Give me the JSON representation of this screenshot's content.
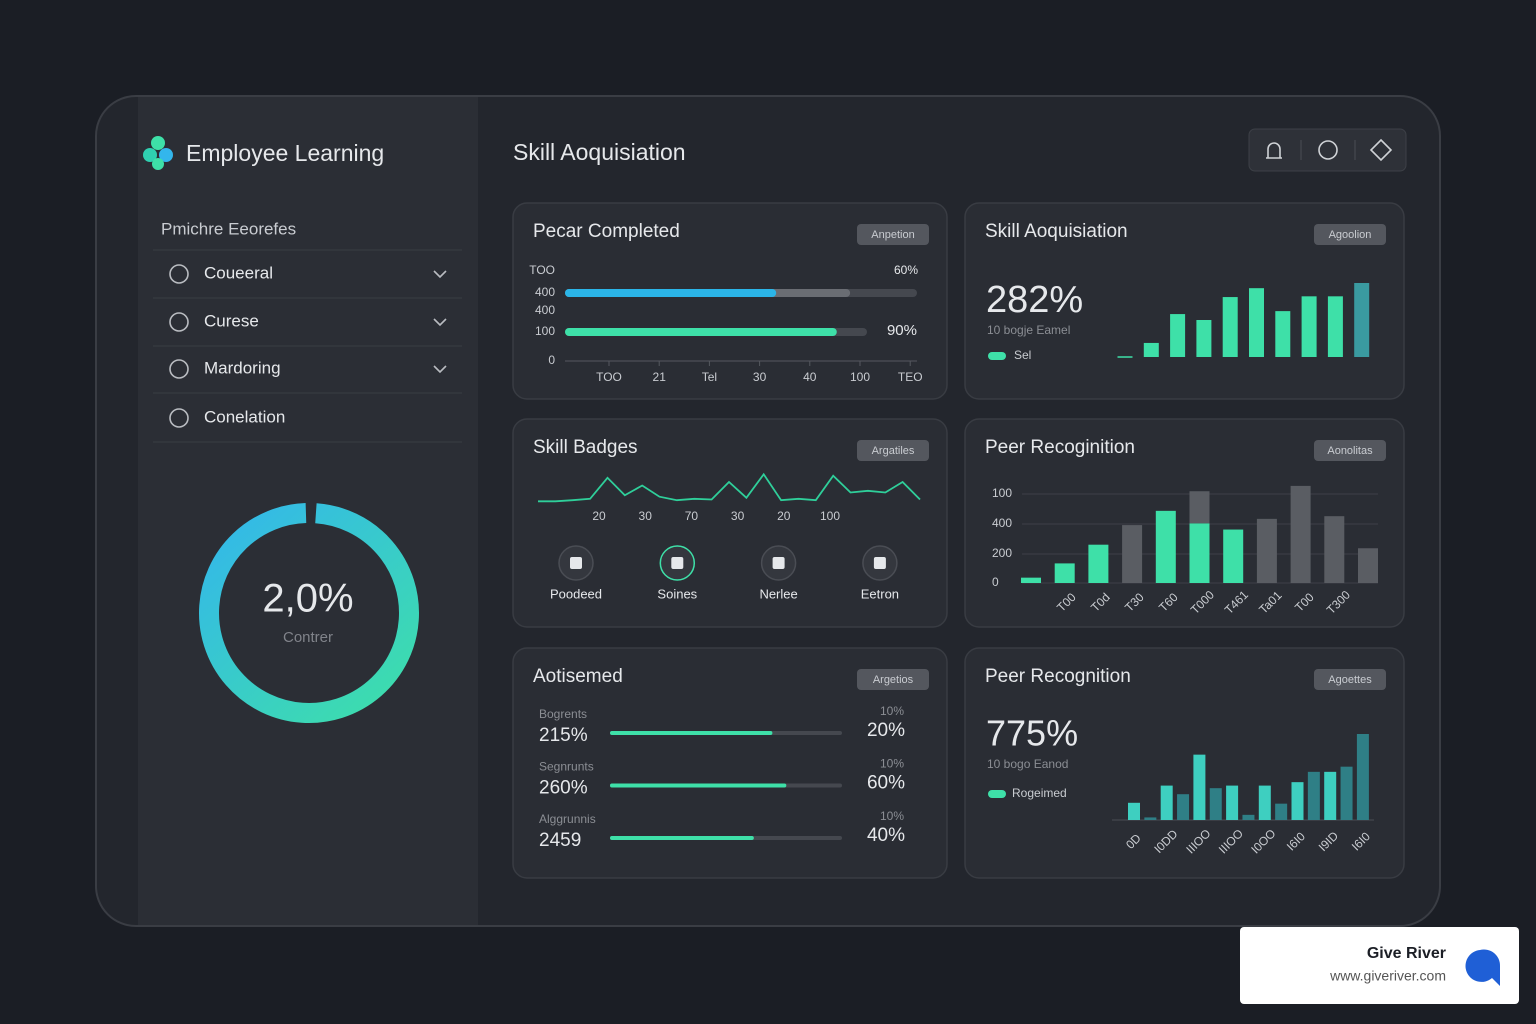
{
  "sidebar": {
    "brand": "Employee Learning",
    "section_title": "Pmichre Eeorefes",
    "menu": [
      {
        "label": "Coueeral",
        "expandable": true
      },
      {
        "label": "Curese",
        "expandable": true
      },
      {
        "label": "Mardoring",
        "expandable": true
      },
      {
        "label": "Conelation",
        "expandable": false
      }
    ],
    "progress_ring": {
      "value_label": "2,0%",
      "caption": "Contrer"
    }
  },
  "header": {
    "title": "Skill Aoquisiation"
  },
  "card_completed": {
    "title": "Pecar Completed",
    "badge": "Anpetion",
    "y_labels": [
      "TOO",
      "400",
      "400",
      "100",
      "0"
    ],
    "x_labels": [
      "TOO",
      "21",
      "Tel",
      "30",
      "40",
      "100",
      "TEO"
    ],
    "bars": [
      {
        "value": 60,
        "buffer": 81,
        "value_label": "60%",
        "color": "#2bb5e8"
      },
      {
        "value": 90,
        "value_label": "90%",
        "color": "#3ee0a8"
      }
    ]
  },
  "card_skill": {
    "title": "Skill Aoquisiation",
    "badge": "Agoolion",
    "kpi": "282%",
    "subtitle": "10 bogje Eamel",
    "legend": "Sel",
    "ylim": [
      0,
      100
    ],
    "values": [
      1,
      19,
      58,
      50,
      81,
      93,
      62,
      82,
      82,
      100
    ],
    "colors": [
      "#3ee0a8",
      "#3ee0a8",
      "#3ee0a8",
      "#3ee0a8",
      "#3ee0a8",
      "#3ee0a8",
      "#3ee0a8",
      "#3ee0a8",
      "#3ee0a8",
      "#3a9aa0"
    ]
  },
  "card_badges": {
    "title": "Skill Badges",
    "badge": "Argatiles",
    "line": {
      "ylim": [
        0,
        100
      ],
      "color": "#2fcf9a",
      "values": [
        5,
        5,
        8,
        12,
        72,
        22,
        50,
        18,
        8,
        12,
        10,
        60,
        15,
        82,
        8,
        12,
        8,
        78,
        30,
        35,
        30,
        60,
        10
      ]
    },
    "x_labels": [
      "20",
      "30",
      "70",
      "30",
      "20",
      "100"
    ],
    "items": [
      {
        "label": "Poodeed"
      },
      {
        "label": "Soines"
      },
      {
        "label": "Nerlee"
      },
      {
        "label": "Eetron"
      }
    ]
  },
  "card_peer": {
    "title": "Peer Recoginition",
    "badge": "Aonolitas",
    "y_labels": [
      "100",
      "400",
      "200",
      "0"
    ],
    "ylim": [
      0,
      110
    ],
    "series": [
      {
        "color": "#3ee0a8",
        "values": [
          6,
          22,
          43,
          null,
          81,
          67,
          60,
          null,
          null,
          null,
          null
        ]
      },
      {
        "color": "#5a5d63",
        "values": [
          null,
          null,
          null,
          65,
          null,
          36,
          null,
          72,
          109,
          75,
          39
        ]
      }
    ],
    "x_labels": [
      "T00",
      "T0d",
      "T30",
      "T60",
      "T000",
      "T461",
      "Ta01",
      "T00",
      "T300"
    ]
  },
  "card_achieved": {
    "title": "Aotisemed",
    "badge": "Argetios",
    "color": "#3ee0a8",
    "rows": [
      {
        "caption": "Bogrents",
        "value": "215%",
        "note": "10%",
        "result": "20%",
        "progress": 70
      },
      {
        "caption": "Segnrunts",
        "value": "260%",
        "note": "10%",
        "result": "60%",
        "progress": 76
      },
      {
        "caption": "Alggrunnis",
        "value": "2459",
        "note": "10%",
        "result": "40%",
        "progress": 62
      }
    ]
  },
  "card_peer2": {
    "title": "Peer Recognition",
    "badge": "Agoettes",
    "kpi": "775%",
    "subtitle": "10 bogo Eanod",
    "legend": "Rogeimed",
    "ylim": [
      0,
      100
    ],
    "values": [
      20,
      3,
      40,
      30,
      76,
      37,
      40,
      6,
      40,
      19,
      44,
      56,
      56,
      62,
      100
    ],
    "colors": [
      "#3ecfc0",
      "#2f7f86",
      "#3ecfc0",
      "#2f7f86",
      "#3ecfc0",
      "#2f7f86",
      "#3ecfc0",
      "#2f7f86",
      "#3ecfc0",
      "#2f7f86",
      "#3ecfc0",
      "#2f7f86",
      "#3ecfc0",
      "#2f7f86",
      "#2f7f86"
    ],
    "x_labels": [
      "0D",
      "I0DD",
      "IIIOO",
      "IIIOO",
      "I0OO",
      "I6I0",
      "I9ID",
      "I6I0"
    ]
  },
  "watermark": {
    "name": "Give River",
    "url": "www.giveriver.com"
  }
}
